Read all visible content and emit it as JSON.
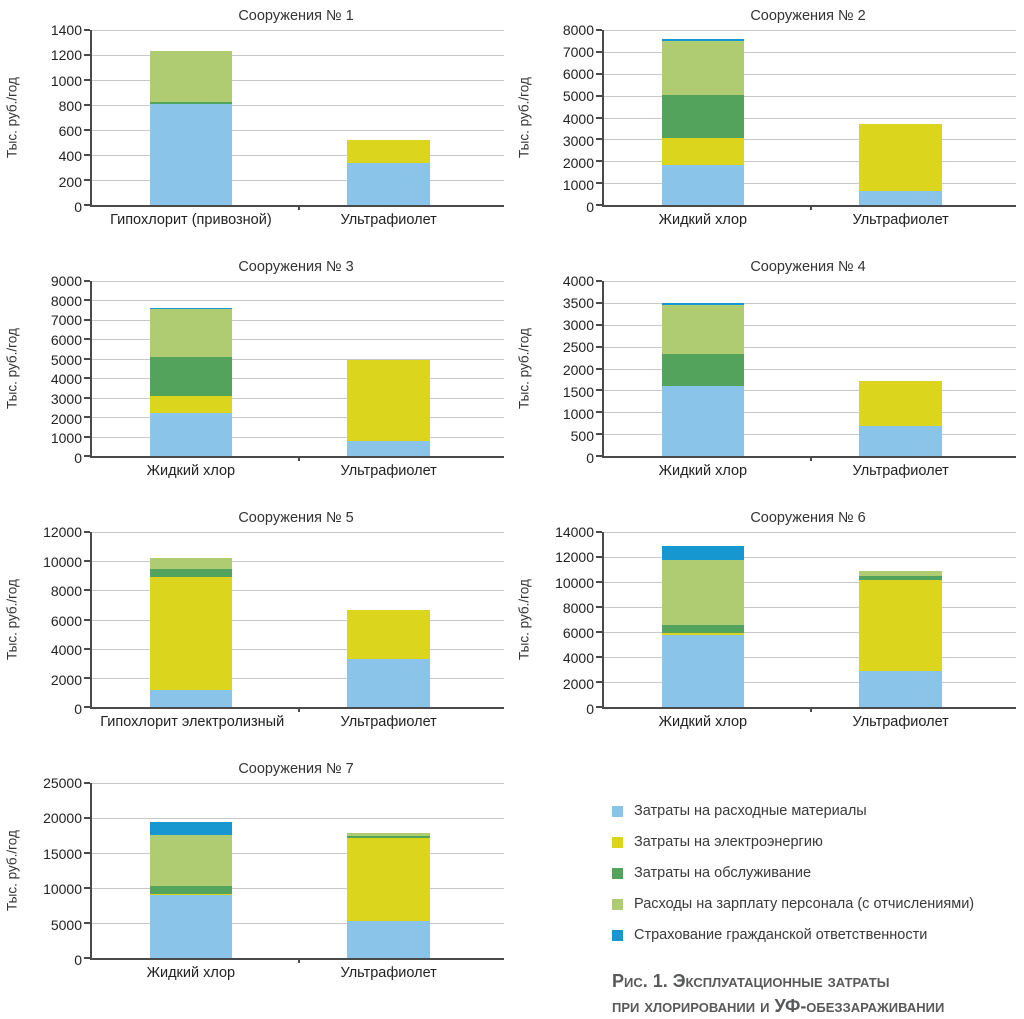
{
  "legend": {
    "items": [
      {
        "label": "Затраты на расходные материалы",
        "color": "#8AC4E9"
      },
      {
        "label": "Затраты на электроэнергию",
        "color": "#DCD51E"
      },
      {
        "label": "Затраты на обслуживание",
        "color": "#53A35C"
      },
      {
        "label": "Расходы на зарплату персонала (с отчислениями)",
        "color": "#AFCC72"
      },
      {
        "label": "Страхование гражданской ответственности",
        "color": "#1697CF"
      }
    ]
  },
  "caption": {
    "line1": "Рис. 1. Эксплуатационные затраты",
    "line2": "при хлорировании и УФ-обеззараживании"
  },
  "chart_data": [
    {
      "type": "bar",
      "stacked": true,
      "title": "Сооружения № 1",
      "ylabel": "Тыс. руб./год",
      "ylim": [
        0,
        1400
      ],
      "ytick_step": 200,
      "grid": true,
      "categories": [
        "Гипохлорит (привозной)",
        "Ультрафиолет"
      ],
      "series": [
        {
          "name": "Затраты на расходные материалы",
          "values": [
            810,
            340
          ]
        },
        {
          "name": "Затраты на электроэнергию",
          "values": [
            0,
            180
          ]
        },
        {
          "name": "Затраты на обслуживание",
          "values": [
            15,
            0
          ]
        },
        {
          "name": "Расходы на зарплату персонала (с отчислениями)",
          "values": [
            410,
            0
          ]
        },
        {
          "name": "Страхование гражданской ответственности",
          "values": [
            0,
            0
          ]
        }
      ]
    },
    {
      "type": "bar",
      "stacked": true,
      "title": "Сооружения № 2",
      "ylabel": "Тыс. руб./год",
      "ylim": [
        0,
        8000
      ],
      "ytick_step": 1000,
      "grid": true,
      "categories": [
        "Жидкий хлор",
        "Ультрафиолет"
      ],
      "series": [
        {
          "name": "Затраты на расходные материалы",
          "values": [
            1850,
            650
          ]
        },
        {
          "name": "Затраты на электроэнергию",
          "values": [
            1200,
            3050
          ]
        },
        {
          "name": "Затраты на обслуживание",
          "values": [
            2000,
            0
          ]
        },
        {
          "name": "Расходы на зарплату персонала (с отчислениями)",
          "values": [
            2450,
            0
          ]
        },
        {
          "name": "Страхование гражданской ответственности",
          "values": [
            100,
            0
          ]
        }
      ]
    },
    {
      "type": "bar",
      "stacked": true,
      "title": "Сооружения № 3",
      "ylabel": "Тыс. руб./год",
      "ylim": [
        0,
        9000
      ],
      "ytick_step": 1000,
      "grid": true,
      "categories": [
        "Жидкий хлор",
        "Ультрафиолет"
      ],
      "series": [
        {
          "name": "Затраты на расходные материалы",
          "values": [
            2200,
            780
          ]
        },
        {
          "name": "Затраты на электроэнергию",
          "values": [
            900,
            4170
          ]
        },
        {
          "name": "Затраты на обслуживание",
          "values": [
            2000,
            0
          ]
        },
        {
          "name": "Расходы на зарплату персонала (с отчислениями)",
          "values": [
            2450,
            0
          ]
        },
        {
          "name": "Страхование гражданской ответственности",
          "values": [
            80,
            0
          ]
        }
      ]
    },
    {
      "type": "bar",
      "stacked": true,
      "title": "Сооружения № 4",
      "ylabel": "Тыс. руб./год",
      "ylim": [
        0,
        4000
      ],
      "ytick_step": 500,
      "grid": true,
      "categories": [
        "Жидкий хлор",
        "Ультрафиолет"
      ],
      "series": [
        {
          "name": "Затраты на расходные материалы",
          "values": [
            1600,
            690
          ]
        },
        {
          "name": "Затраты на электроэнергию",
          "values": [
            0,
            1030
          ]
        },
        {
          "name": "Затраты на обслуживание",
          "values": [
            730,
            0
          ]
        },
        {
          "name": "Расходы на зарплату персонала (с отчислениями)",
          "values": [
            1120,
            0
          ]
        },
        {
          "name": "Страхование гражданской ответственности",
          "values": [
            40,
            0
          ]
        }
      ]
    },
    {
      "type": "bar",
      "stacked": true,
      "title": "Сооружения № 5",
      "ylabel": "Тыс. руб./год",
      "ylim": [
        0,
        12000
      ],
      "ytick_step": 2000,
      "grid": true,
      "categories": [
        "Гипохлорит электролизный",
        "Ультрафиолет"
      ],
      "series": [
        {
          "name": "Затраты на расходные материалы",
          "values": [
            1150,
            3300
          ]
        },
        {
          "name": "Затраты на электроэнергию",
          "values": [
            7750,
            3350
          ]
        },
        {
          "name": "Затраты на обслуживание",
          "values": [
            550,
            0
          ]
        },
        {
          "name": "Расходы на зарплату персонала (с отчислениями)",
          "values": [
            750,
            0
          ]
        },
        {
          "name": "Страхование гражданской ответственности",
          "values": [
            0,
            0
          ]
        }
      ]
    },
    {
      "type": "bar",
      "stacked": true,
      "title": "Сооружения № 6",
      "ylabel": "Тыс. руб./год",
      "ylim": [
        0,
        14000
      ],
      "ytick_step": 2000,
      "grid": true,
      "categories": [
        "Жидкий хлор",
        "Ультрафиолет"
      ],
      "series": [
        {
          "name": "Затраты на расходные материалы",
          "values": [
            5750,
            2900
          ]
        },
        {
          "name": "Затраты на электроэнергию",
          "values": [
            150,
            7300
          ]
        },
        {
          "name": "Затраты на обслуживание",
          "values": [
            650,
            250
          ]
        },
        {
          "name": "Расходы на зарплату персонала (с отчислениями)",
          "values": [
            5250,
            450
          ]
        },
        {
          "name": "Страхование гражданской ответственности",
          "values": [
            1100,
            0
          ]
        }
      ]
    },
    {
      "type": "bar",
      "stacked": true,
      "title": "Сооружения № 7",
      "ylabel": "Тыс. руб./год",
      "ylim": [
        0,
        25000
      ],
      "ytick_step": 5000,
      "grid": true,
      "categories": [
        "Жидкий хлор",
        "Ультрафиолет"
      ],
      "series": [
        {
          "name": "Затраты на расходные материалы",
          "values": [
            9000,
            5300
          ]
        },
        {
          "name": "Затраты на электроэнергию",
          "values": [
            200,
            11800
          ]
        },
        {
          "name": "Затраты на обслуживание",
          "values": [
            1100,
            300
          ]
        },
        {
          "name": "Расходы на зарплату персонала (с отчислениями)",
          "values": [
            7300,
            500
          ]
        },
        {
          "name": "Страхование гражданской ответственности",
          "values": [
            1800,
            0
          ]
        }
      ]
    }
  ]
}
